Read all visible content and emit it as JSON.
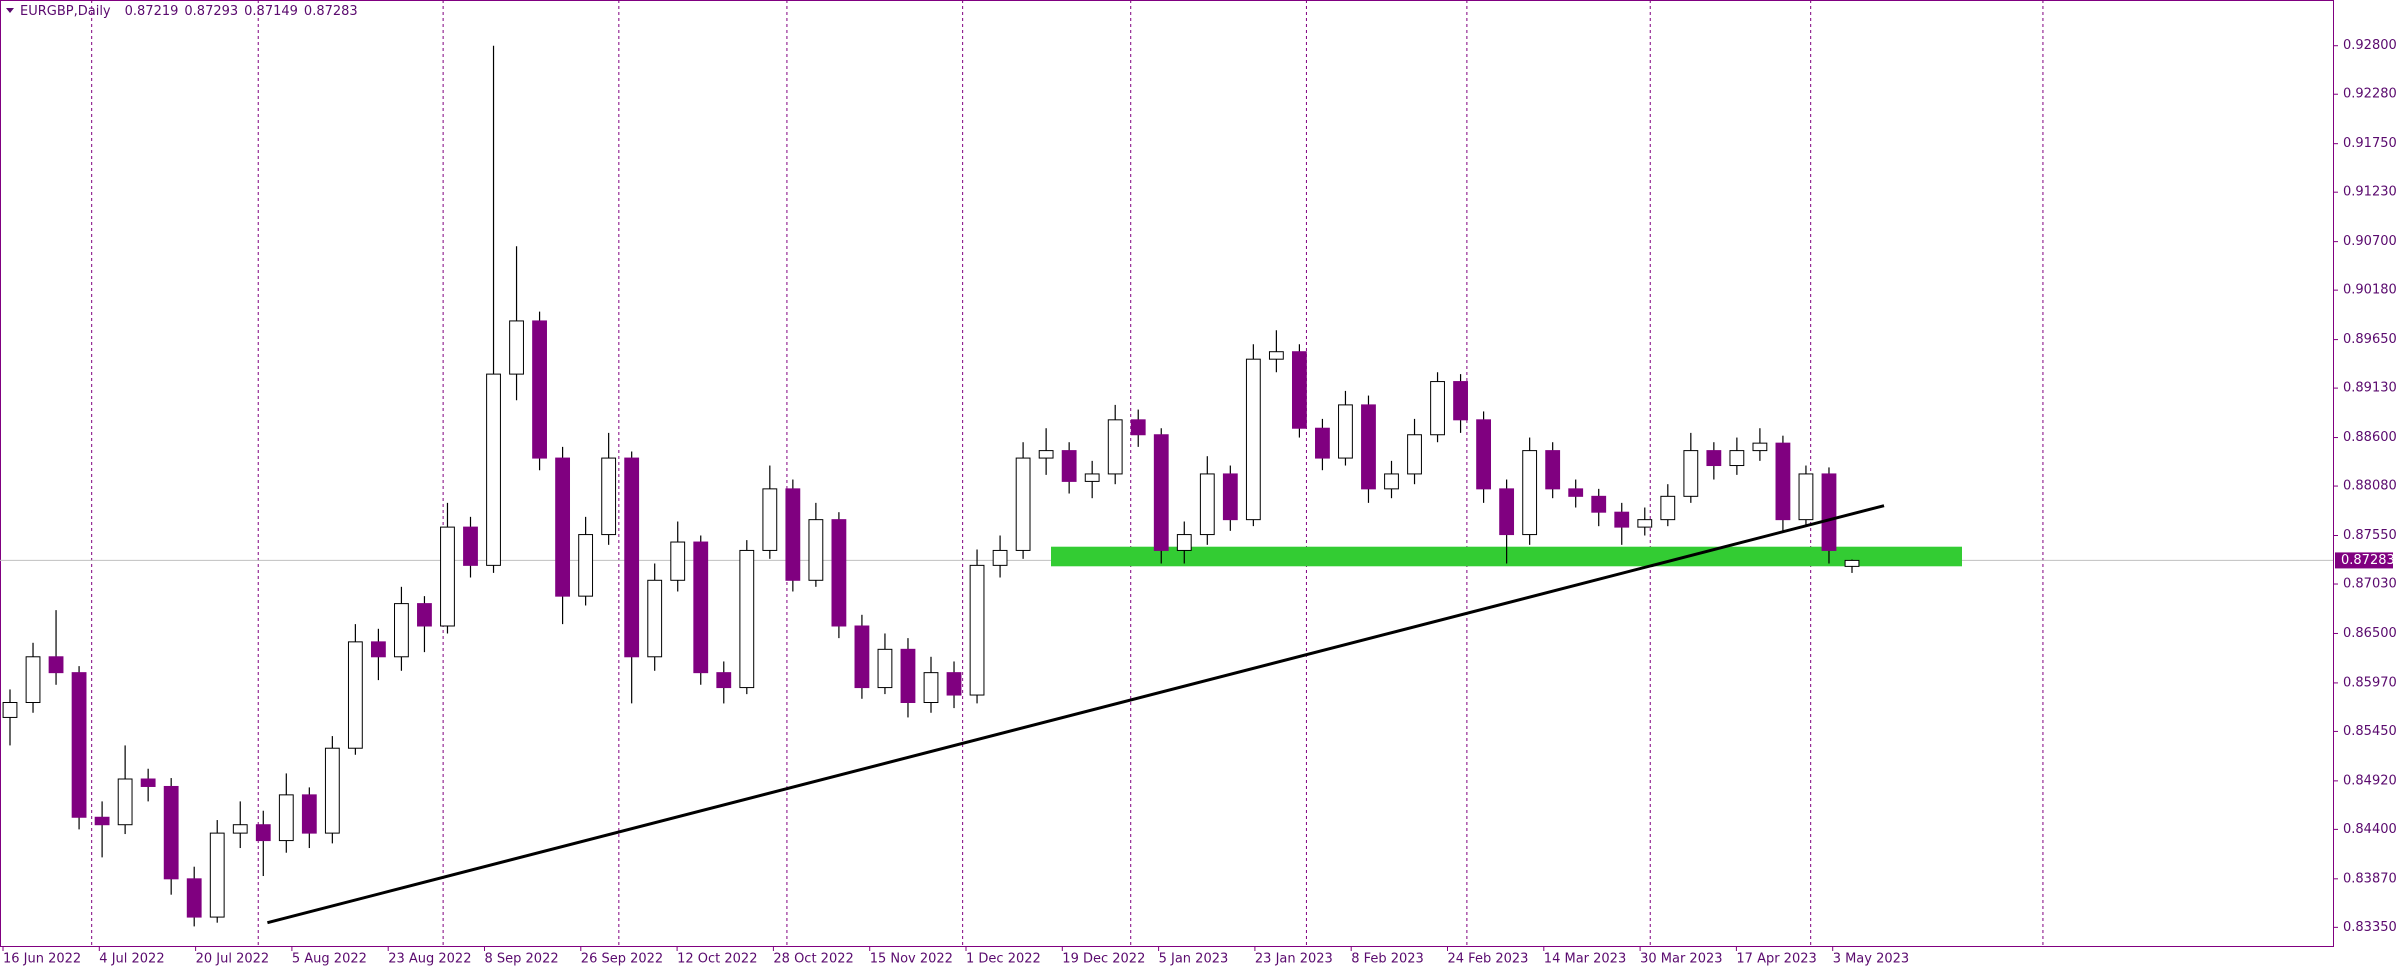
{
  "chart_data": {
    "type": "candlestick",
    "symbol": "EURGBP,Daily",
    "header_values": [
      0.87219,
      0.87293,
      0.87149,
      0.87283
    ],
    "current_price": {
      "value": 0.87283,
      "label": "0.87283"
    },
    "ylim": [
      0.8315,
      0.9329
    ],
    "yticks": [
      {
        "value": 0.928,
        "label": "0.92800"
      },
      {
        "value": 0.9228,
        "label": "0.92280"
      },
      {
        "value": 0.9175,
        "label": "0.91750"
      },
      {
        "value": 0.9123,
        "label": "0.91230"
      },
      {
        "value": 0.907,
        "label": "0.90700"
      },
      {
        "value": 0.9018,
        "label": "0.90180"
      },
      {
        "value": 0.8965,
        "label": "0.89650"
      },
      {
        "value": 0.8913,
        "label": "0.89130"
      },
      {
        "value": 0.886,
        "label": "0.88600"
      },
      {
        "value": 0.8808,
        "label": "0.88080"
      },
      {
        "value": 0.8755,
        "label": "0.87550"
      },
      {
        "value": 0.8703,
        "label": "0.87030"
      },
      {
        "value": 0.865,
        "label": "0.86500"
      },
      {
        "value": 0.8597,
        "label": "0.85970"
      },
      {
        "value": 0.8545,
        "label": "0.85450"
      },
      {
        "value": 0.8492,
        "label": "0.84920"
      },
      {
        "value": 0.844,
        "label": "0.84400"
      },
      {
        "value": 0.8387,
        "label": "0.83870"
      },
      {
        "value": 0.8335,
        "label": "0.83350"
      }
    ],
    "x_labels": [
      "16 Jun 2022",
      "4 Jul 2022",
      "20 Jul 2022",
      "5 Aug 2022",
      "23 Aug 2022",
      "8 Sep 2022",
      "26 Sep 2022",
      "12 Oct 2022",
      "28 Oct 2022",
      "15 Nov 2022",
      "1 Dec 2022",
      "19 Dec 2022",
      "5 Jan 2023",
      "23 Jan 2023",
      "8 Feb 2023",
      "24 Feb 2023",
      "14 Mar 2023",
      "30 Mar 2023",
      "17 Apr 2023",
      "3 May 2023"
    ],
    "up_color": "#ffffff",
    "down_color": "#800080",
    "trendline": {
      "start_price": 0.834,
      "end_price": 0.8787,
      "color": "#000000"
    },
    "support_zone": {
      "low": 0.8722,
      "high": 0.8743,
      "color": "#33cc33"
    },
    "ohlc": [
      [
        0.856,
        0.859,
        0.853,
        0.8576
      ],
      [
        0.8576,
        0.864,
        0.8565,
        0.8625
      ],
      [
        0.8625,
        0.8675,
        0.8595,
        0.8608
      ],
      [
        0.8608,
        0.8615,
        0.844,
        0.8453
      ],
      [
        0.8453,
        0.847,
        0.841,
        0.8445
      ],
      [
        0.8445,
        0.853,
        0.8435,
        0.8494
      ],
      [
        0.8494,
        0.8505,
        0.847,
        0.8486
      ],
      [
        0.8486,
        0.8495,
        0.837,
        0.8387
      ],
      [
        0.8387,
        0.84,
        0.8336,
        0.8346
      ],
      [
        0.8346,
        0.845,
        0.834,
        0.8436
      ],
      [
        0.8436,
        0.847,
        0.842,
        0.8445
      ],
      [
        0.8445,
        0.846,
        0.839,
        0.8428
      ],
      [
        0.8428,
        0.85,
        0.8415,
        0.8477
      ],
      [
        0.8477,
        0.8485,
        0.842,
        0.8436
      ],
      [
        0.8436,
        0.854,
        0.8425,
        0.8527
      ],
      [
        0.8527,
        0.866,
        0.852,
        0.8641
      ],
      [
        0.8641,
        0.8655,
        0.86,
        0.8625
      ],
      [
        0.8625,
        0.87,
        0.861,
        0.8682
      ],
      [
        0.8682,
        0.869,
        0.863,
        0.8658
      ],
      [
        0.8658,
        0.879,
        0.865,
        0.8764
      ],
      [
        0.8764,
        0.8775,
        0.871,
        0.8723
      ],
      [
        0.8723,
        0.928,
        0.8715,
        0.8928
      ],
      [
        0.8928,
        0.9065,
        0.89,
        0.8985
      ],
      [
        0.8985,
        0.8995,
        0.8825,
        0.8838
      ],
      [
        0.8838,
        0.885,
        0.866,
        0.869
      ],
      [
        0.869,
        0.8775,
        0.868,
        0.8756
      ],
      [
        0.8756,
        0.8865,
        0.8745,
        0.8838
      ],
      [
        0.8838,
        0.8845,
        0.8575,
        0.8625
      ],
      [
        0.8625,
        0.8725,
        0.861,
        0.8707
      ],
      [
        0.8707,
        0.877,
        0.8695,
        0.8748
      ],
      [
        0.8748,
        0.8755,
        0.8595,
        0.8608
      ],
      [
        0.8608,
        0.862,
        0.8575,
        0.8592
      ],
      [
        0.8592,
        0.875,
        0.8585,
        0.8739
      ],
      [
        0.8739,
        0.883,
        0.873,
        0.8805
      ],
      [
        0.8805,
        0.8815,
        0.8695,
        0.8707
      ],
      [
        0.8707,
        0.879,
        0.87,
        0.8772
      ],
      [
        0.8772,
        0.878,
        0.8645,
        0.8658
      ],
      [
        0.8658,
        0.867,
        0.858,
        0.8592
      ],
      [
        0.8592,
        0.865,
        0.8585,
        0.8633
      ],
      [
        0.8633,
        0.8645,
        0.856,
        0.8576
      ],
      [
        0.8576,
        0.8625,
        0.8565,
        0.8608
      ],
      [
        0.8608,
        0.862,
        0.857,
        0.8584
      ],
      [
        0.8584,
        0.874,
        0.8575,
        0.8723
      ],
      [
        0.8723,
        0.8755,
        0.871,
        0.8739
      ],
      [
        0.8739,
        0.8855,
        0.873,
        0.8838
      ],
      [
        0.8838,
        0.887,
        0.882,
        0.8846
      ],
      [
        0.8846,
        0.8855,
        0.88,
        0.8813
      ],
      [
        0.8813,
        0.8835,
        0.8795,
        0.8821
      ],
      [
        0.8821,
        0.8895,
        0.881,
        0.8879
      ],
      [
        0.8879,
        0.889,
        0.885,
        0.8863
      ],
      [
        0.8863,
        0.887,
        0.8725,
        0.8739
      ],
      [
        0.8739,
        0.877,
        0.8725,
        0.8756
      ],
      [
        0.8756,
        0.884,
        0.8745,
        0.8821
      ],
      [
        0.8821,
        0.883,
        0.876,
        0.8772
      ],
      [
        0.8772,
        0.896,
        0.8765,
        0.8944
      ],
      [
        0.8944,
        0.8975,
        0.893,
        0.8952
      ],
      [
        0.8952,
        0.896,
        0.886,
        0.887
      ],
      [
        0.887,
        0.888,
        0.8825,
        0.8838
      ],
      [
        0.8838,
        0.891,
        0.883,
        0.8895
      ],
      [
        0.8895,
        0.8905,
        0.879,
        0.8805
      ],
      [
        0.8805,
        0.8835,
        0.8795,
        0.8821
      ],
      [
        0.8821,
        0.888,
        0.881,
        0.8863
      ],
      [
        0.8863,
        0.893,
        0.8855,
        0.892
      ],
      [
        0.892,
        0.8928,
        0.8865,
        0.8879
      ],
      [
        0.8879,
        0.8888,
        0.879,
        0.8805
      ],
      [
        0.8805,
        0.8815,
        0.8725,
        0.8756
      ],
      [
        0.8756,
        0.886,
        0.8745,
        0.8846
      ],
      [
        0.8846,
        0.8855,
        0.8795,
        0.8805
      ],
      [
        0.8805,
        0.8815,
        0.8785,
        0.8797
      ],
      [
        0.8797,
        0.8805,
        0.8765,
        0.878
      ],
      [
        0.878,
        0.879,
        0.8745,
        0.8764
      ],
      [
        0.8764,
        0.8785,
        0.8755,
        0.8772
      ],
      [
        0.8772,
        0.881,
        0.8765,
        0.8797
      ],
      [
        0.8797,
        0.8865,
        0.879,
        0.8846
      ],
      [
        0.8846,
        0.8855,
        0.8815,
        0.883
      ],
      [
        0.883,
        0.886,
        0.882,
        0.8846
      ],
      [
        0.8846,
        0.887,
        0.8835,
        0.8854
      ],
      [
        0.8854,
        0.8862,
        0.876,
        0.8772
      ],
      [
        0.8772,
        0.883,
        0.8765,
        0.8821
      ],
      [
        0.8821,
        0.8828,
        0.8725,
        0.8739
      ],
      [
        0.87219,
        0.87293,
        0.87149,
        0.87283
      ]
    ]
  }
}
